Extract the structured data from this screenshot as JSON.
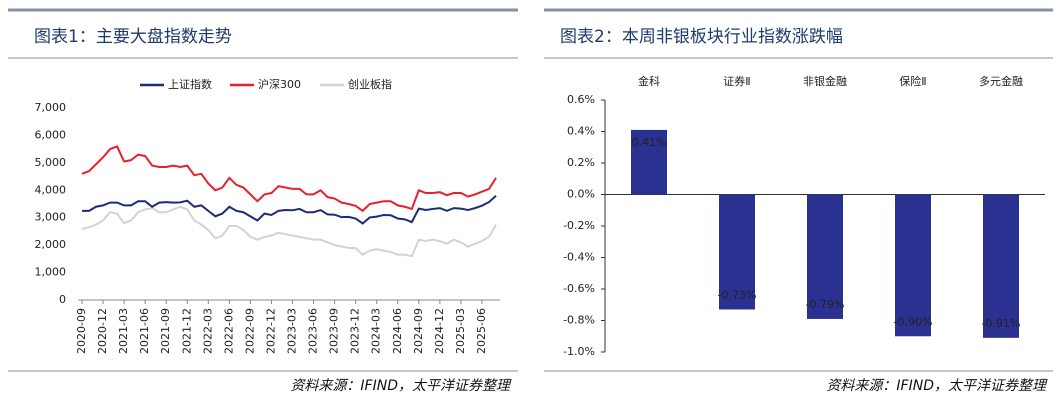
{
  "chart_data": [
    {
      "type": "line",
      "title": "图表1：主要大盘指数走势",
      "source": "资料来源：IFIND，太平洋证券整理",
      "categories": [
        "2020-09",
        null,
        null,
        "2020-12",
        null,
        null,
        "2021-03",
        null,
        null,
        "2021-06",
        null,
        null,
        "2021-09",
        null,
        null,
        "2021-12",
        null,
        null,
        "2022-03",
        null,
        null,
        "2022-06",
        null,
        null,
        "2022-09",
        null,
        null,
        "2022-12",
        null,
        null,
        "2023-03",
        null,
        null,
        "2023-06",
        null,
        null,
        "2023-09",
        null,
        null,
        "2023-12",
        null,
        null,
        "2024-03",
        null,
        null,
        "2024-06",
        null,
        null,
        "2024-09",
        null,
        null,
        "2024-12",
        null,
        null,
        "2025-03",
        null,
        null,
        "2025-06",
        null,
        null
      ],
      "series": [
        {
          "name": "上证指数",
          "color": "#1f2a7a",
          "values": [
            3250,
            3250,
            3400,
            3450,
            3550,
            3550,
            3450,
            3450,
            3600,
            3600,
            3400,
            3550,
            3570,
            3550,
            3560,
            3620,
            3400,
            3450,
            3250,
            3050,
            3150,
            3400,
            3250,
            3200,
            3050,
            2900,
            3150,
            3100,
            3250,
            3280,
            3270,
            3320,
            3200,
            3200,
            3280,
            3120,
            3110,
            3020,
            3030,
            2970,
            2790,
            3010,
            3040,
            3100,
            3090,
            2970,
            2940,
            2840,
            3330,
            3280,
            3320,
            3350,
            3250,
            3350,
            3330,
            3280,
            3350,
            3440,
            3570,
            3800
          ]
        },
        {
          "name": "沪深300",
          "color": "#e8202a",
          "values": [
            4600,
            4700,
            4950,
            5200,
            5500,
            5600,
            5050,
            5100,
            5300,
            5250,
            4900,
            4850,
            4850,
            4900,
            4850,
            4900,
            4550,
            4600,
            4250,
            4000,
            4100,
            4450,
            4200,
            4100,
            3850,
            3600,
            3850,
            3900,
            4150,
            4100,
            4050,
            4050,
            3850,
            3850,
            4000,
            3750,
            3700,
            3550,
            3500,
            3430,
            3250,
            3500,
            3550,
            3600,
            3600,
            3450,
            3400,
            3320,
            4000,
            3900,
            3900,
            3930,
            3820,
            3900,
            3900,
            3770,
            3850,
            3950,
            4050,
            4450
          ]
        },
        {
          "name": "创业板指",
          "color": "#d3d3d3",
          "values": [
            2600,
            2650,
            2750,
            2900,
            3200,
            3150,
            2800,
            2900,
            3200,
            3300,
            3350,
            3200,
            3200,
            3300,
            3400,
            3300,
            2900,
            2750,
            2550,
            2250,
            2350,
            2700,
            2700,
            2550,
            2300,
            2200,
            2300,
            2350,
            2450,
            2400,
            2350,
            2300,
            2250,
            2200,
            2200,
            2100,
            2000,
            1950,
            1900,
            1890,
            1650,
            1800,
            1850,
            1800,
            1750,
            1650,
            1650,
            1600,
            2200,
            2150,
            2200,
            2150,
            2050,
            2200,
            2100,
            1950,
            2050,
            2150,
            2300,
            2750
          ]
        }
      ],
      "ylim": [
        0,
        7000
      ],
      "yticks": [
        0,
        {
          "value": 1000,
          "label": "1,000"
        },
        {
          "value": 2000,
          "label": "2,000"
        },
        {
          "value": 3000,
          "label": "3,000"
        },
        {
          "value": 4000,
          "label": "4,000"
        },
        {
          "value": 5000,
          "label": "5,000"
        },
        {
          "value": 6000,
          "label": "6,000"
        },
        {
          "value": 7000,
          "label": "7,000"
        }
      ]
    },
    {
      "type": "bar",
      "title": "图表2：本周非银板块行业指数涨跌幅",
      "source": "资料来源：IFIND，太平洋证券整理",
      "categories": [
        "金科",
        "证券Ⅱ",
        "非银金融",
        "保险Ⅱ",
        "多元金融"
      ],
      "values": [
        0.41,
        -0.73,
        -0.79,
        -0.9,
        -0.91
      ],
      "value_labels": [
        "0.41%",
        "-0.73%",
        "-0.79%",
        "-0.90%",
        "-0.91%"
      ],
      "color": "#2b3190",
      "ylim": [
        -1.0,
        0.6
      ],
      "yticks": [
        {
          "value": 0.6,
          "label": "0.6%"
        },
        {
          "value": 0.4,
          "label": "0.4%"
        },
        {
          "value": 0.2,
          "label": "0.2%"
        },
        {
          "value": 0.0,
          "label": "0.0%"
        },
        {
          "value": -0.2,
          "label": "-0.2%"
        },
        {
          "value": -0.4,
          "label": "-0.4%"
        },
        {
          "value": -0.6,
          "label": "-0.6%"
        },
        {
          "value": -0.8,
          "label": "-0.8%"
        },
        {
          "value": -1.0,
          "label": "-1.0%"
        }
      ]
    }
  ]
}
